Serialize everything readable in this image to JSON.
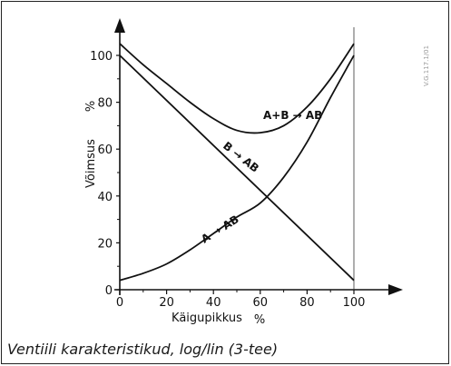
{
  "caption": "Ventiili karakteristikud, log/lin (3-tee)",
  "figure_code": "V.G.117.1/01",
  "chart_data": {
    "type": "line",
    "xlabel": "Käigupikkus",
    "xunit": "%",
    "ylabel": "Võimsus",
    "yunit": "%",
    "xlim": [
      0,
      100
    ],
    "ylim": [
      0,
      100
    ],
    "xticks": [
      0,
      20,
      40,
      60,
      80,
      100
    ],
    "yticks": [
      0,
      20,
      40,
      60,
      80,
      100
    ],
    "grid": false,
    "series": [
      {
        "name": "A+B → AB",
        "x": [
          0,
          10,
          20,
          30,
          40,
          50,
          60,
          70,
          80,
          90,
          100
        ],
        "y": [
          105,
          96,
          88,
          80,
          73,
          68,
          67,
          70,
          78,
          90,
          105
        ]
      },
      {
        "name": "B → AB",
        "x": [
          0,
          10,
          20,
          30,
          40,
          50,
          60,
          70,
          80,
          90,
          100
        ],
        "y": [
          100,
          90,
          80,
          70,
          60,
          50,
          40,
          31,
          22,
          13,
          4
        ]
      },
      {
        "name": "A → AB",
        "x": [
          0,
          10,
          20,
          30,
          40,
          50,
          60,
          70,
          80,
          90,
          100
        ],
        "y": [
          4,
          7,
          11,
          17,
          24,
          31,
          37,
          48,
          63,
          82,
          100
        ]
      }
    ]
  }
}
